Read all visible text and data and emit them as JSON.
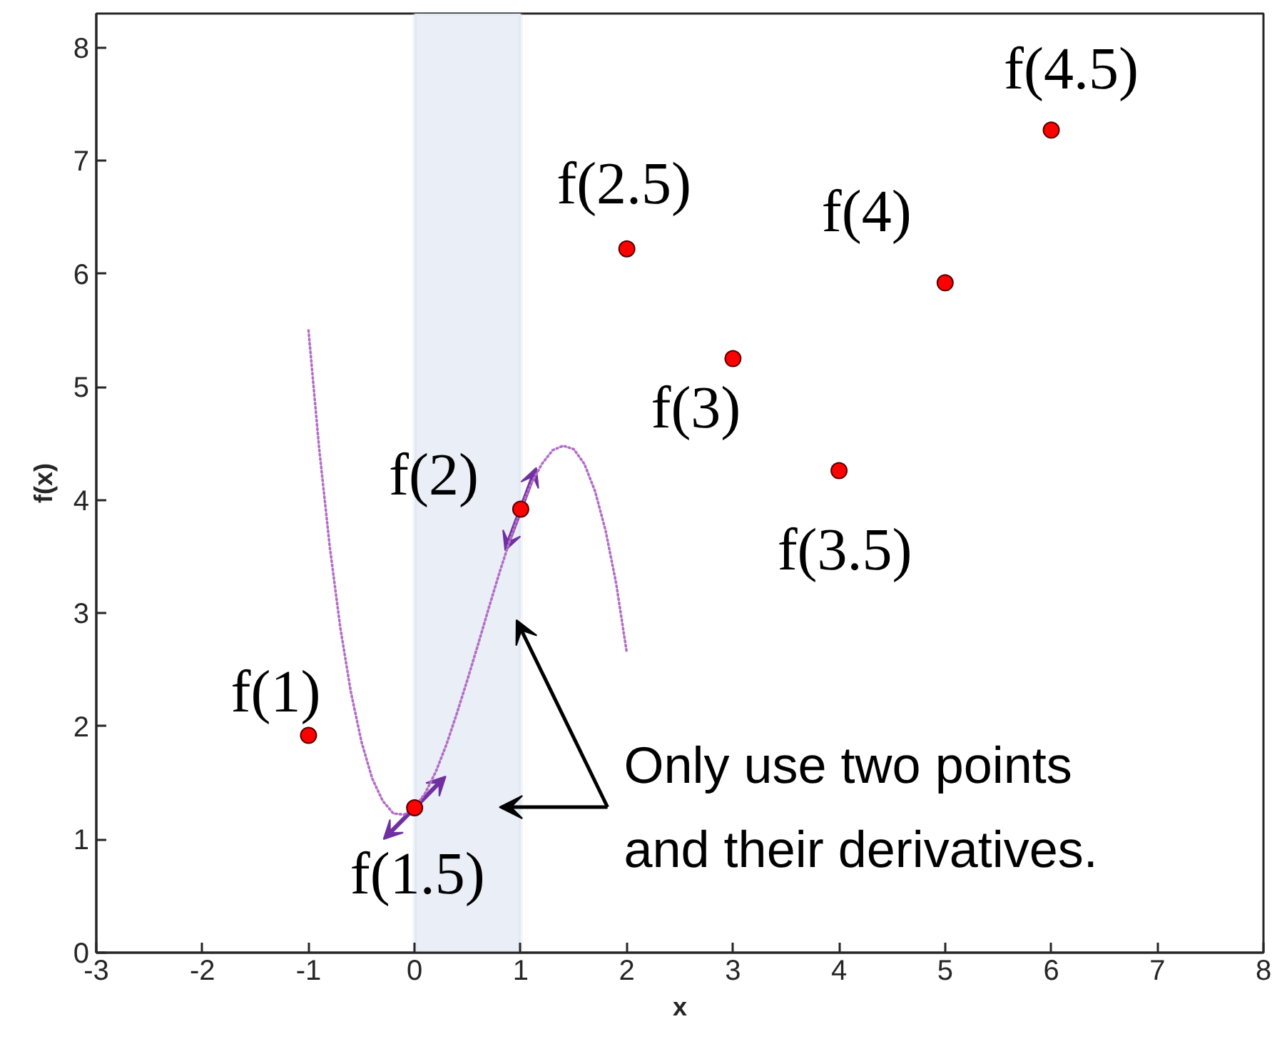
{
  "chart_data": {
    "type": "scatter",
    "xlabel": "x",
    "ylabel": "f(x)",
    "xlim": [
      -3,
      8
    ],
    "ylim": [
      0,
      8.3
    ],
    "xticks": [
      -3,
      -2,
      -1,
      0,
      1,
      2,
      3,
      4,
      5,
      6,
      7,
      8
    ],
    "yticks": [
      0,
      1,
      2,
      3,
      4,
      5,
      6,
      7,
      8
    ],
    "grid": false,
    "series": [
      {
        "marker": "circle",
        "color": "#ff0000",
        "x": [
          -1,
          0,
          1,
          2,
          3,
          4,
          5,
          6
        ],
        "values": [
          1.92,
          1.28,
          3.92,
          6.22,
          5.25,
          4.26,
          5.92,
          7.27
        ],
        "value_labels": [
          "f(1)",
          "f(1.5)",
          "f(2)",
          "f(2.5)",
          "f(3)",
          "f(3.5)",
          "f(4)",
          "f(4.5)"
        ]
      },
      {
        "type": "line",
        "marker": "none",
        "line_style": "dotted",
        "color": "#b46ec8",
        "x": [
          -1,
          -0.9,
          -0.8,
          -0.7,
          -0.6,
          -0.5,
          -0.4,
          -0.3,
          -0.2,
          -0.1,
          0,
          0.1,
          0.2,
          0.3,
          0.4,
          0.5,
          0.6,
          0.7,
          0.8,
          0.9,
          1,
          1.1,
          1.2,
          1.3,
          1.4,
          1.5,
          1.6,
          1.7,
          1.8,
          1.9,
          2
        ],
        "values": [
          5.5,
          4.46,
          3.59,
          2.87,
          2.3,
          1.86,
          1.54,
          1.34,
          1.23,
          1.22,
          1.28,
          1.41,
          1.6,
          1.84,
          2.12,
          2.42,
          2.73,
          3.05,
          3.36,
          3.65,
          3.92,
          4.15,
          4.32,
          4.44,
          4.48,
          4.45,
          4.32,
          4.08,
          3.73,
          3.26,
          2.65
        ]
      }
    ],
    "bands": [
      {
        "axis": "x",
        "from": 0,
        "to": 1,
        "color": "#e9eef7"
      }
    ],
    "annotations": [
      {
        "text": "Only use two points and their derivatives.",
        "x": 0.96,
        "y": 2.94
      }
    ]
  }
}
